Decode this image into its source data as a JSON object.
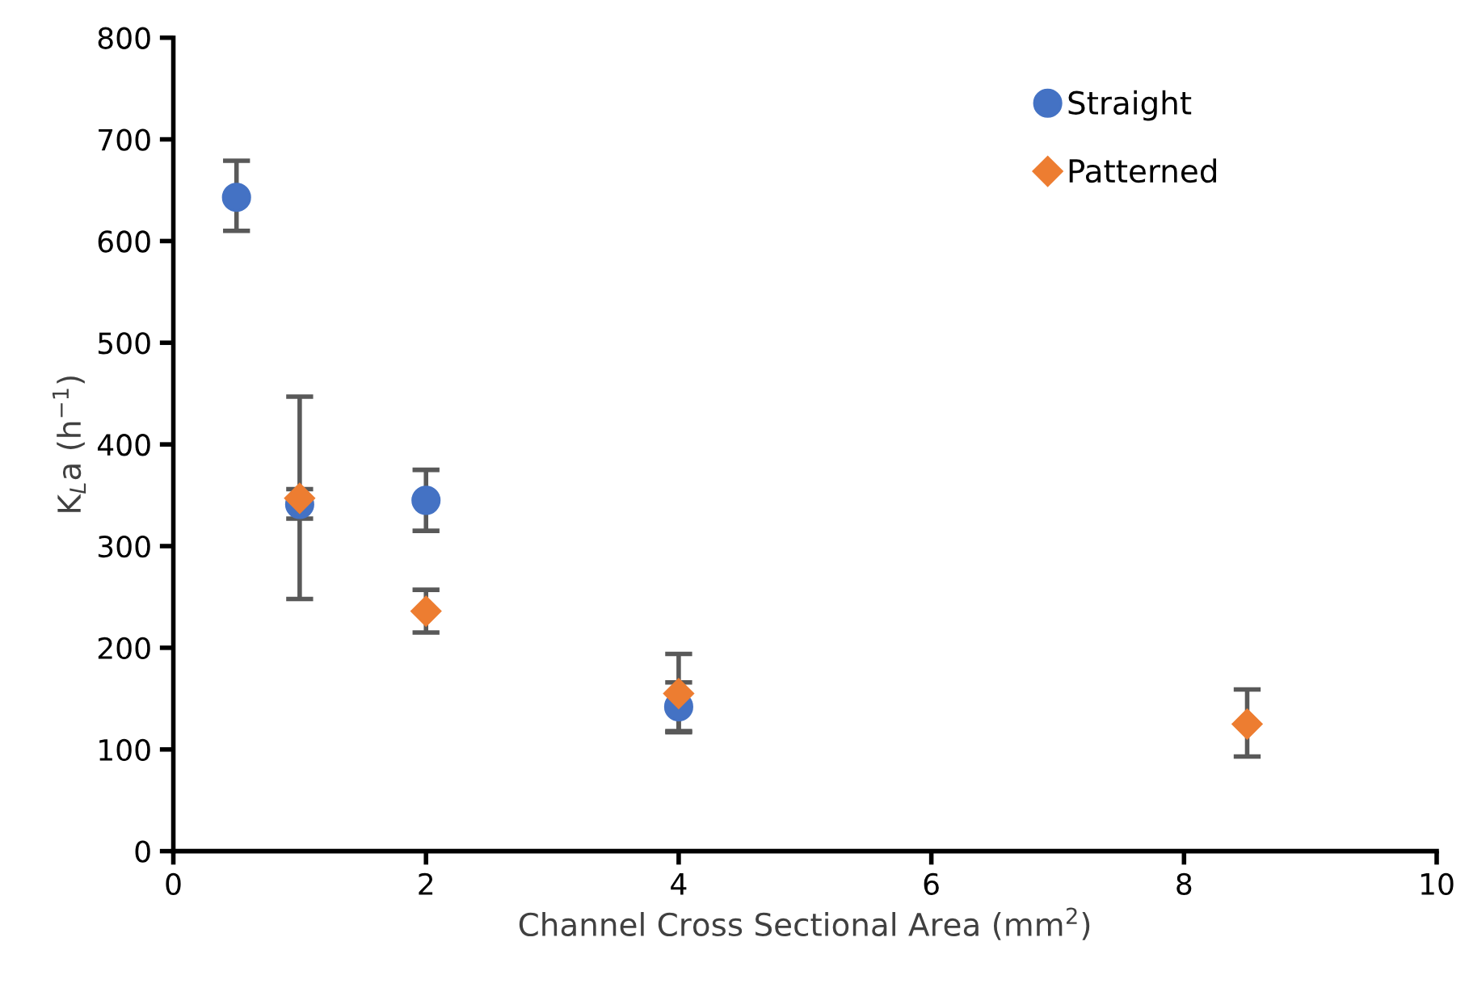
{
  "chart_data": {
    "type": "scatter",
    "xlabel": "Channel Cross Sectional Area (mm$^{2}$)",
    "ylabel": "K$_{L}$a (h$^{−1}$)",
    "xlim": [
      0,
      10
    ],
    "xticks": [
      0,
      2,
      4,
      6,
      8,
      10
    ],
    "ylim": [
      0,
      800
    ],
    "yticks": [
      0,
      100,
      200,
      300,
      400,
      500,
      600,
      700,
      800
    ],
    "grid": false,
    "legend": "top right",
    "series": [
      {
        "name": "Straight",
        "color": "#4472c4",
        "marker": "circle",
        "x": [
          0.5,
          1,
          2,
          4
        ],
        "values": [
          643,
          341,
          345,
          142
        ],
        "errors": [
          [
            610,
            679
          ],
          [
            327,
            356
          ],
          [
            315,
            375
          ],
          [
            118,
            166
          ]
        ]
      },
      {
        "name": "Patterned",
        "color": "#ed7d31",
        "marker": "diamond",
        "x": [
          1,
          2,
          4,
          8.5
        ],
        "values": [
          347,
          236,
          155,
          125
        ],
        "errors": [
          [
            248,
            447
          ],
          [
            215,
            257
          ],
          [
            117,
            194
          ],
          [
            93,
            159
          ]
        ]
      }
    ]
  }
}
